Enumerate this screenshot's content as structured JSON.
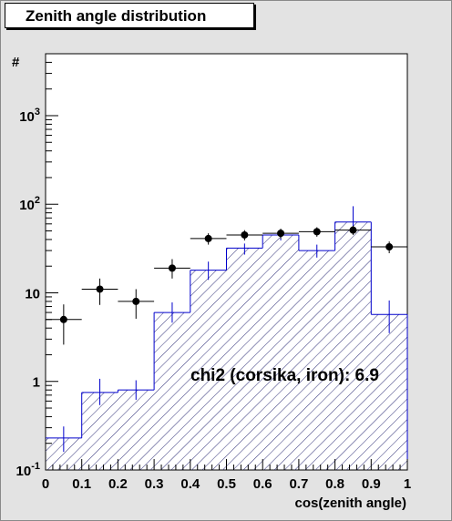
{
  "chart_data": {
    "type": "histogram",
    "title": "Zenith angle distribution",
    "xlabel": "cos(zenith angle)",
    "ylabel": "#",
    "xlim": [
      0,
      1
    ],
    "ylim": [
      0.1,
      5000
    ],
    "yscale": "log",
    "grid": false,
    "annotation": "chi2 (corsika, iron): 6.9",
    "x_ticks": [
      "0",
      "0.1",
      "0.2",
      "0.3",
      "0.4",
      "0.5",
      "0.6",
      "0.7",
      "0.8",
      "0.9",
      "1"
    ],
    "y_ticks": [
      {
        "value": 0.1,
        "base": "10",
        "exp": "-1"
      },
      {
        "value": 1,
        "base": "1",
        "exp": ""
      },
      {
        "value": 10,
        "base": "10",
        "exp": ""
      },
      {
        "value": 100,
        "base": "10",
        "exp": "2"
      },
      {
        "value": 1000,
        "base": "10",
        "exp": "3"
      }
    ],
    "bin_edges": [
      0,
      0.1,
      0.2,
      0.3,
      0.4,
      0.5,
      0.6,
      0.7,
      0.8,
      0.9,
      1.0
    ],
    "series": [
      {
        "style": "hatched-histogram",
        "color": "#0000cc",
        "values": [
          0.23,
          0.75,
          0.8,
          6,
          18,
          32,
          45,
          30,
          63,
          5.7
        ],
        "errors_low": [
          0.16,
          0.54,
          0.62,
          4.6,
          14,
          27,
          39,
          25,
          52,
          3.5
        ],
        "errors_high": [
          0.31,
          1.07,
          1.03,
          7.8,
          22.5,
          36,
          51,
          35,
          95,
          8.2
        ]
      },
      {
        "style": "points-with-errors",
        "color": "#000000",
        "values": [
          5,
          11,
          8,
          19,
          41,
          45,
          47,
          49,
          51,
          33
        ],
        "errors_low": [
          2.6,
          7.3,
          5.1,
          14.5,
          35,
          39,
          41,
          43,
          45,
          28
        ],
        "errors_high": [
          7.4,
          14.5,
          11,
          24,
          47,
          51,
          53,
          55,
          57,
          38
        ]
      }
    ]
  }
}
